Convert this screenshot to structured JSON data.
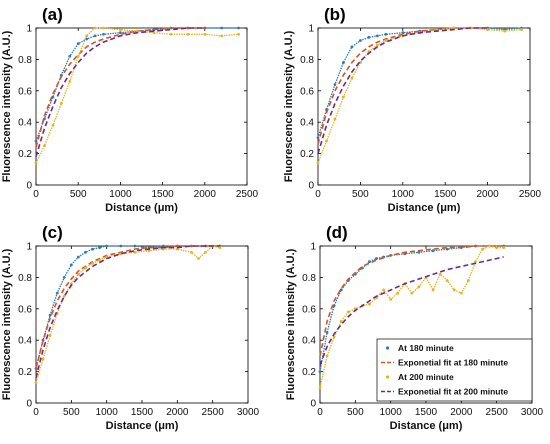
{
  "colors": {
    "blue": "#2b7bba",
    "red": "#d9541e",
    "yellow": "#e6b420",
    "purple": "#6b2a8c"
  },
  "legend": {
    "entries": [
      "At 180 minute",
      "Exponetial fit at 180 minute",
      "At 200 minute",
      "Exponetial fit at 200 minute"
    ]
  },
  "chart_data": [
    {
      "type": "scatter",
      "label": "(a)",
      "xlabel": "Distance (μm)",
      "ylabel": "Fluorescence intensity (A.U.)",
      "xlim": [
        0,
        2500
      ],
      "ylim": [
        0,
        1
      ],
      "xticks": [
        0,
        500,
        1000,
        1500,
        2000,
        2500
      ],
      "yticks": [
        0,
        0.2,
        0.4,
        0.6,
        0.8,
        1
      ],
      "series": [
        {
          "kind": "markers",
          "color": "blue",
          "x": [
            0,
            100,
            200,
            300,
            400,
            500,
            600,
            700,
            800,
            1000,
            1200,
            1400,
            1600,
            1800,
            2000,
            2200,
            2400
          ],
          "y": [
            0.28,
            0.42,
            0.56,
            0.7,
            0.82,
            0.9,
            0.93,
            0.95,
            0.96,
            0.97,
            0.98,
            0.99,
            1.0,
            1.0,
            1.0,
            1.0,
            1.0
          ]
        },
        {
          "kind": "dashed",
          "color": "red",
          "x": [
            0,
            100,
            200,
            300,
            400,
            500,
            600,
            700,
            800,
            1000,
            1200,
            1400,
            1600,
            1800,
            2000
          ],
          "y": [
            0.24,
            0.44,
            0.58,
            0.69,
            0.77,
            0.83,
            0.88,
            0.91,
            0.93,
            0.96,
            0.98,
            0.99,
            1.0,
            1.0,
            1.0
          ]
        },
        {
          "kind": "markers",
          "color": "yellow",
          "x": [
            0,
            100,
            200,
            300,
            400,
            500,
            600,
            700,
            800,
            1000,
            1200,
            1400,
            1600,
            1800,
            2000,
            2200,
            2400
          ],
          "y": [
            0.14,
            0.25,
            0.38,
            0.52,
            0.66,
            0.82,
            0.95,
            1.0,
            1.0,
            0.99,
            0.98,
            0.97,
            0.96,
            0.96,
            0.96,
            0.95,
            0.96
          ]
        },
        {
          "kind": "dashed",
          "color": "purple",
          "x": [
            0,
            100,
            200,
            300,
            400,
            500,
            600,
            700,
            800,
            1000,
            1200,
            1400,
            1600,
            1800,
            2000
          ],
          "y": [
            0.18,
            0.36,
            0.5,
            0.62,
            0.71,
            0.78,
            0.84,
            0.88,
            0.91,
            0.95,
            0.97,
            0.98,
            0.99,
            1.0,
            1.0
          ]
        }
      ]
    },
    {
      "type": "scatter",
      "label": "(b)",
      "xlabel": "Distance (μm)",
      "ylabel": "Fluorescence intensity (A.U.)",
      "xlim": [
        0,
        2500
      ],
      "ylim": [
        0,
        1
      ],
      "xticks": [
        0,
        500,
        1000,
        1500,
        2000,
        2500
      ],
      "yticks": [
        0,
        0.2,
        0.4,
        0.6,
        0.8,
        1
      ],
      "series": [
        {
          "kind": "markers",
          "color": "blue",
          "x": [
            0,
            100,
            200,
            300,
            400,
            500,
            600,
            700,
            800,
            1000,
            1200,
            1400,
            1600,
            1800,
            2000,
            2200,
            2400
          ],
          "y": [
            0.3,
            0.48,
            0.64,
            0.78,
            0.88,
            0.92,
            0.94,
            0.95,
            0.96,
            0.97,
            0.98,
            0.99,
            1.0,
            1.0,
            1.0,
            0.99,
            1.0
          ]
        },
        {
          "kind": "dashed",
          "color": "red",
          "x": [
            0,
            100,
            200,
            300,
            400,
            500,
            600,
            700,
            800,
            1000,
            1200,
            1400,
            1600,
            1800,
            2000
          ],
          "y": [
            0.26,
            0.46,
            0.6,
            0.7,
            0.78,
            0.84,
            0.88,
            0.91,
            0.93,
            0.96,
            0.98,
            0.99,
            1.0,
            1.0,
            1.0
          ]
        },
        {
          "kind": "markers",
          "color": "yellow",
          "x": [
            0,
            100,
            200,
            300,
            400,
            500,
            600,
            700,
            800,
            1000,
            1200,
            1400,
            1600,
            1800,
            2000,
            2200,
            2400
          ],
          "y": [
            0.14,
            0.28,
            0.42,
            0.56,
            0.68,
            0.78,
            0.85,
            0.89,
            0.92,
            0.95,
            0.97,
            0.99,
            1.0,
            1.0,
            0.99,
            0.98,
            0.99
          ]
        },
        {
          "kind": "dashed",
          "color": "purple",
          "x": [
            0,
            100,
            200,
            300,
            400,
            500,
            600,
            700,
            800,
            1000,
            1200,
            1400,
            1600,
            1800,
            2000
          ],
          "y": [
            0.2,
            0.38,
            0.52,
            0.63,
            0.72,
            0.79,
            0.84,
            0.88,
            0.91,
            0.95,
            0.97,
            0.98,
            0.99,
            1.0,
            1.0
          ]
        }
      ]
    },
    {
      "type": "scatter",
      "label": "(c)",
      "xlabel": "Distance (μm)",
      "ylabel": "Fluorescence intensity (A.U.)",
      "xlim": [
        0,
        3000
      ],
      "ylim": [
        0,
        1
      ],
      "xticks": [
        0,
        500,
        1000,
        1500,
        2000,
        2500,
        3000
      ],
      "yticks": [
        0,
        0.2,
        0.4,
        0.6,
        0.8,
        1
      ],
      "series": [
        {
          "kind": "markers",
          "color": "blue",
          "x": [
            0,
            100,
            200,
            300,
            400,
            500,
            600,
            700,
            800,
            900,
            1000,
            1200,
            1400,
            1600,
            1800,
            2000,
            2200,
            2400,
            2600
          ],
          "y": [
            0.22,
            0.4,
            0.56,
            0.7,
            0.8,
            0.88,
            0.93,
            0.96,
            0.98,
            0.99,
            1.0,
            1.0,
            1.0,
            0.99,
            1.0,
            1.0,
            1.0,
            1.0,
            1.0
          ]
        },
        {
          "kind": "dashed",
          "color": "red",
          "x": [
            0,
            100,
            200,
            300,
            400,
            500,
            600,
            800,
            1000,
            1200,
            1400,
            1600,
            1800,
            2000,
            2200,
            2400,
            2600
          ],
          "y": [
            0.22,
            0.4,
            0.54,
            0.65,
            0.73,
            0.79,
            0.84,
            0.9,
            0.94,
            0.96,
            0.98,
            0.99,
            0.99,
            1.0,
            1.0,
            1.0,
            1.0
          ]
        },
        {
          "kind": "markers",
          "color": "yellow",
          "x": [
            0,
            100,
            200,
            300,
            400,
            500,
            600,
            700,
            800,
            900,
            1000,
            1200,
            1400,
            1600,
            1800,
            2000,
            2200,
            2300,
            2400,
            2500,
            2600
          ],
          "y": [
            0.13,
            0.28,
            0.43,
            0.57,
            0.68,
            0.76,
            0.82,
            0.86,
            0.89,
            0.91,
            0.93,
            0.95,
            0.96,
            0.97,
            0.98,
            0.98,
            0.96,
            0.92,
            0.96,
            1.0,
            0.99
          ]
        },
        {
          "kind": "dashed",
          "color": "purple",
          "x": [
            0,
            100,
            200,
            300,
            400,
            500,
            600,
            800,
            1000,
            1200,
            1400,
            1600,
            1800,
            2000,
            2200,
            2400,
            2600
          ],
          "y": [
            0.16,
            0.34,
            0.48,
            0.59,
            0.68,
            0.75,
            0.8,
            0.87,
            0.92,
            0.95,
            0.97,
            0.98,
            0.99,
            0.99,
            1.0,
            1.0,
            1.0
          ]
        }
      ]
    },
    {
      "type": "scatter",
      "label": "(d)",
      "xlabel": "Distance (μm)",
      "ylabel": "Fluorescence intensity (A.U.)",
      "xlim": [
        0,
        3000
      ],
      "ylim": [
        0,
        1
      ],
      "xticks": [
        0,
        500,
        1000,
        1500,
        2000,
        2500,
        3000
      ],
      "yticks": [
        0,
        0.2,
        0.4,
        0.6,
        0.8,
        1
      ],
      "legend": "bottom-right",
      "series": [
        {
          "kind": "markers",
          "color": "blue",
          "name": "At 180 minute",
          "x": [
            0,
            100,
            200,
            300,
            400,
            500,
            600,
            700,
            800,
            900,
            1000,
            1200,
            1400,
            1600,
            1800,
            2000,
            2200,
            2400,
            2600
          ],
          "y": [
            0.2,
            0.45,
            0.62,
            0.72,
            0.78,
            0.82,
            0.86,
            0.9,
            0.92,
            0.93,
            0.94,
            0.95,
            0.96,
            0.97,
            0.98,
            0.99,
            1.0,
            1.0,
            1.0
          ]
        },
        {
          "kind": "dashed",
          "color": "red",
          "name": "Exponetial fit at 180 minute",
          "x": [
            0,
            100,
            200,
            300,
            400,
            500,
            600,
            800,
            1000,
            1200,
            1400,
            1600,
            1800,
            2000,
            2200,
            2400,
            2600
          ],
          "y": [
            0.3,
            0.52,
            0.65,
            0.73,
            0.79,
            0.83,
            0.87,
            0.91,
            0.94,
            0.96,
            0.97,
            0.98,
            0.99,
            0.99,
            1.0,
            1.0,
            1.0
          ]
        },
        {
          "kind": "markers",
          "color": "yellow",
          "name": "At 200 minute",
          "x": [
            0,
            100,
            200,
            300,
            400,
            500,
            600,
            700,
            800,
            900,
            1000,
            1100,
            1200,
            1300,
            1400,
            1500,
            1600,
            1700,
            1800,
            1900,
            2000,
            2100,
            2200,
            2300,
            2400,
            2500,
            2600
          ],
          "y": [
            0.1,
            0.3,
            0.42,
            0.52,
            0.58,
            0.6,
            0.62,
            0.63,
            0.67,
            0.72,
            0.66,
            0.7,
            0.76,
            0.7,
            0.74,
            0.8,
            0.72,
            0.82,
            0.78,
            0.72,
            0.7,
            0.78,
            0.9,
            0.98,
            1.0,
            0.99,
            0.99
          ]
        },
        {
          "kind": "dashed",
          "color": "purple",
          "name": "Exponetial fit at 200 minute",
          "x": [
            0,
            100,
            200,
            300,
            400,
            500,
            600,
            800,
            1000,
            1200,
            1400,
            1600,
            1800,
            2000,
            2200,
            2400,
            2600
          ],
          "y": [
            0.24,
            0.36,
            0.44,
            0.5,
            0.55,
            0.59,
            0.62,
            0.68,
            0.72,
            0.76,
            0.79,
            0.82,
            0.85,
            0.87,
            0.89,
            0.91,
            0.93
          ]
        }
      ]
    }
  ]
}
